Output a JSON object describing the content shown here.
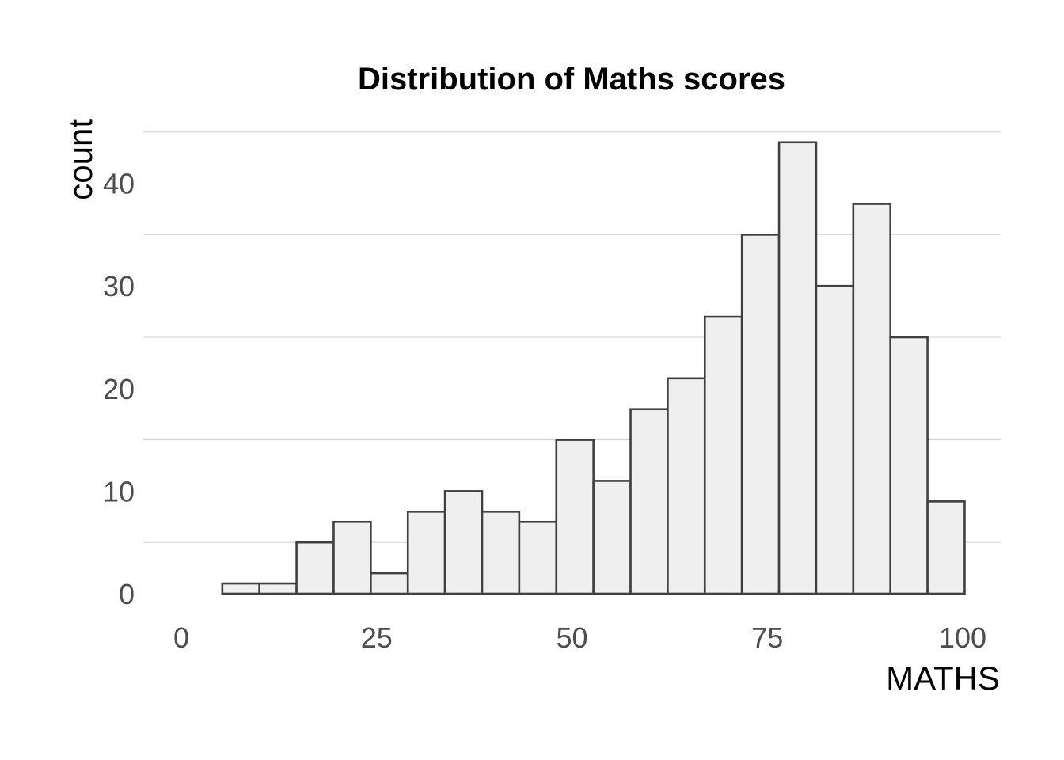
{
  "chart_data": {
    "type": "bar",
    "title": "Distribution of Maths scores",
    "xlabel": "MATHS",
    "ylabel": "count",
    "xlim": [
      0,
      100
    ],
    "ylim": [
      0,
      45
    ],
    "x_ticks": [
      0,
      25,
      50,
      75,
      100
    ],
    "y_ticks": [
      0,
      10,
      20,
      30,
      40
    ],
    "grid": "horizontal",
    "legend": "none",
    "bin_width": 4.75,
    "bins": [
      {
        "x_start": 5.25,
        "x_end": 10.0,
        "count": 1
      },
      {
        "x_start": 10.0,
        "x_end": 14.75,
        "count": 1
      },
      {
        "x_start": 14.75,
        "x_end": 19.5,
        "count": 5
      },
      {
        "x_start": 19.5,
        "x_end": 24.25,
        "count": 7
      },
      {
        "x_start": 24.25,
        "x_end": 29.0,
        "count": 2
      },
      {
        "x_start": 29.0,
        "x_end": 33.75,
        "count": 8
      },
      {
        "x_start": 33.75,
        "x_end": 38.5,
        "count": 10
      },
      {
        "x_start": 38.5,
        "x_end": 43.25,
        "count": 8
      },
      {
        "x_start": 43.25,
        "x_end": 48.0,
        "count": 7
      },
      {
        "x_start": 48.0,
        "x_end": 52.75,
        "count": 15
      },
      {
        "x_start": 52.75,
        "x_end": 57.5,
        "count": 11
      },
      {
        "x_start": 57.5,
        "x_end": 62.25,
        "count": 18
      },
      {
        "x_start": 62.25,
        "x_end": 67.0,
        "count": 21
      },
      {
        "x_start": 67.0,
        "x_end": 71.75,
        "count": 27
      },
      {
        "x_start": 71.75,
        "x_end": 76.5,
        "count": 35
      },
      {
        "x_start": 76.5,
        "x_end": 81.25,
        "count": 44
      },
      {
        "x_start": 81.25,
        "x_end": 86.0,
        "count": 30
      },
      {
        "x_start": 86.0,
        "x_end": 90.75,
        "count": 38
      },
      {
        "x_start": 90.75,
        "x_end": 95.5,
        "count": 25
      },
      {
        "x_start": 95.5,
        "x_end": 100.25,
        "count": 9
      }
    ],
    "colors": {
      "bar_fill": "#efefef",
      "bar_stroke": "#404040",
      "grid": "#d9d9d9",
      "tick_text": "#4d4d4d"
    }
  }
}
